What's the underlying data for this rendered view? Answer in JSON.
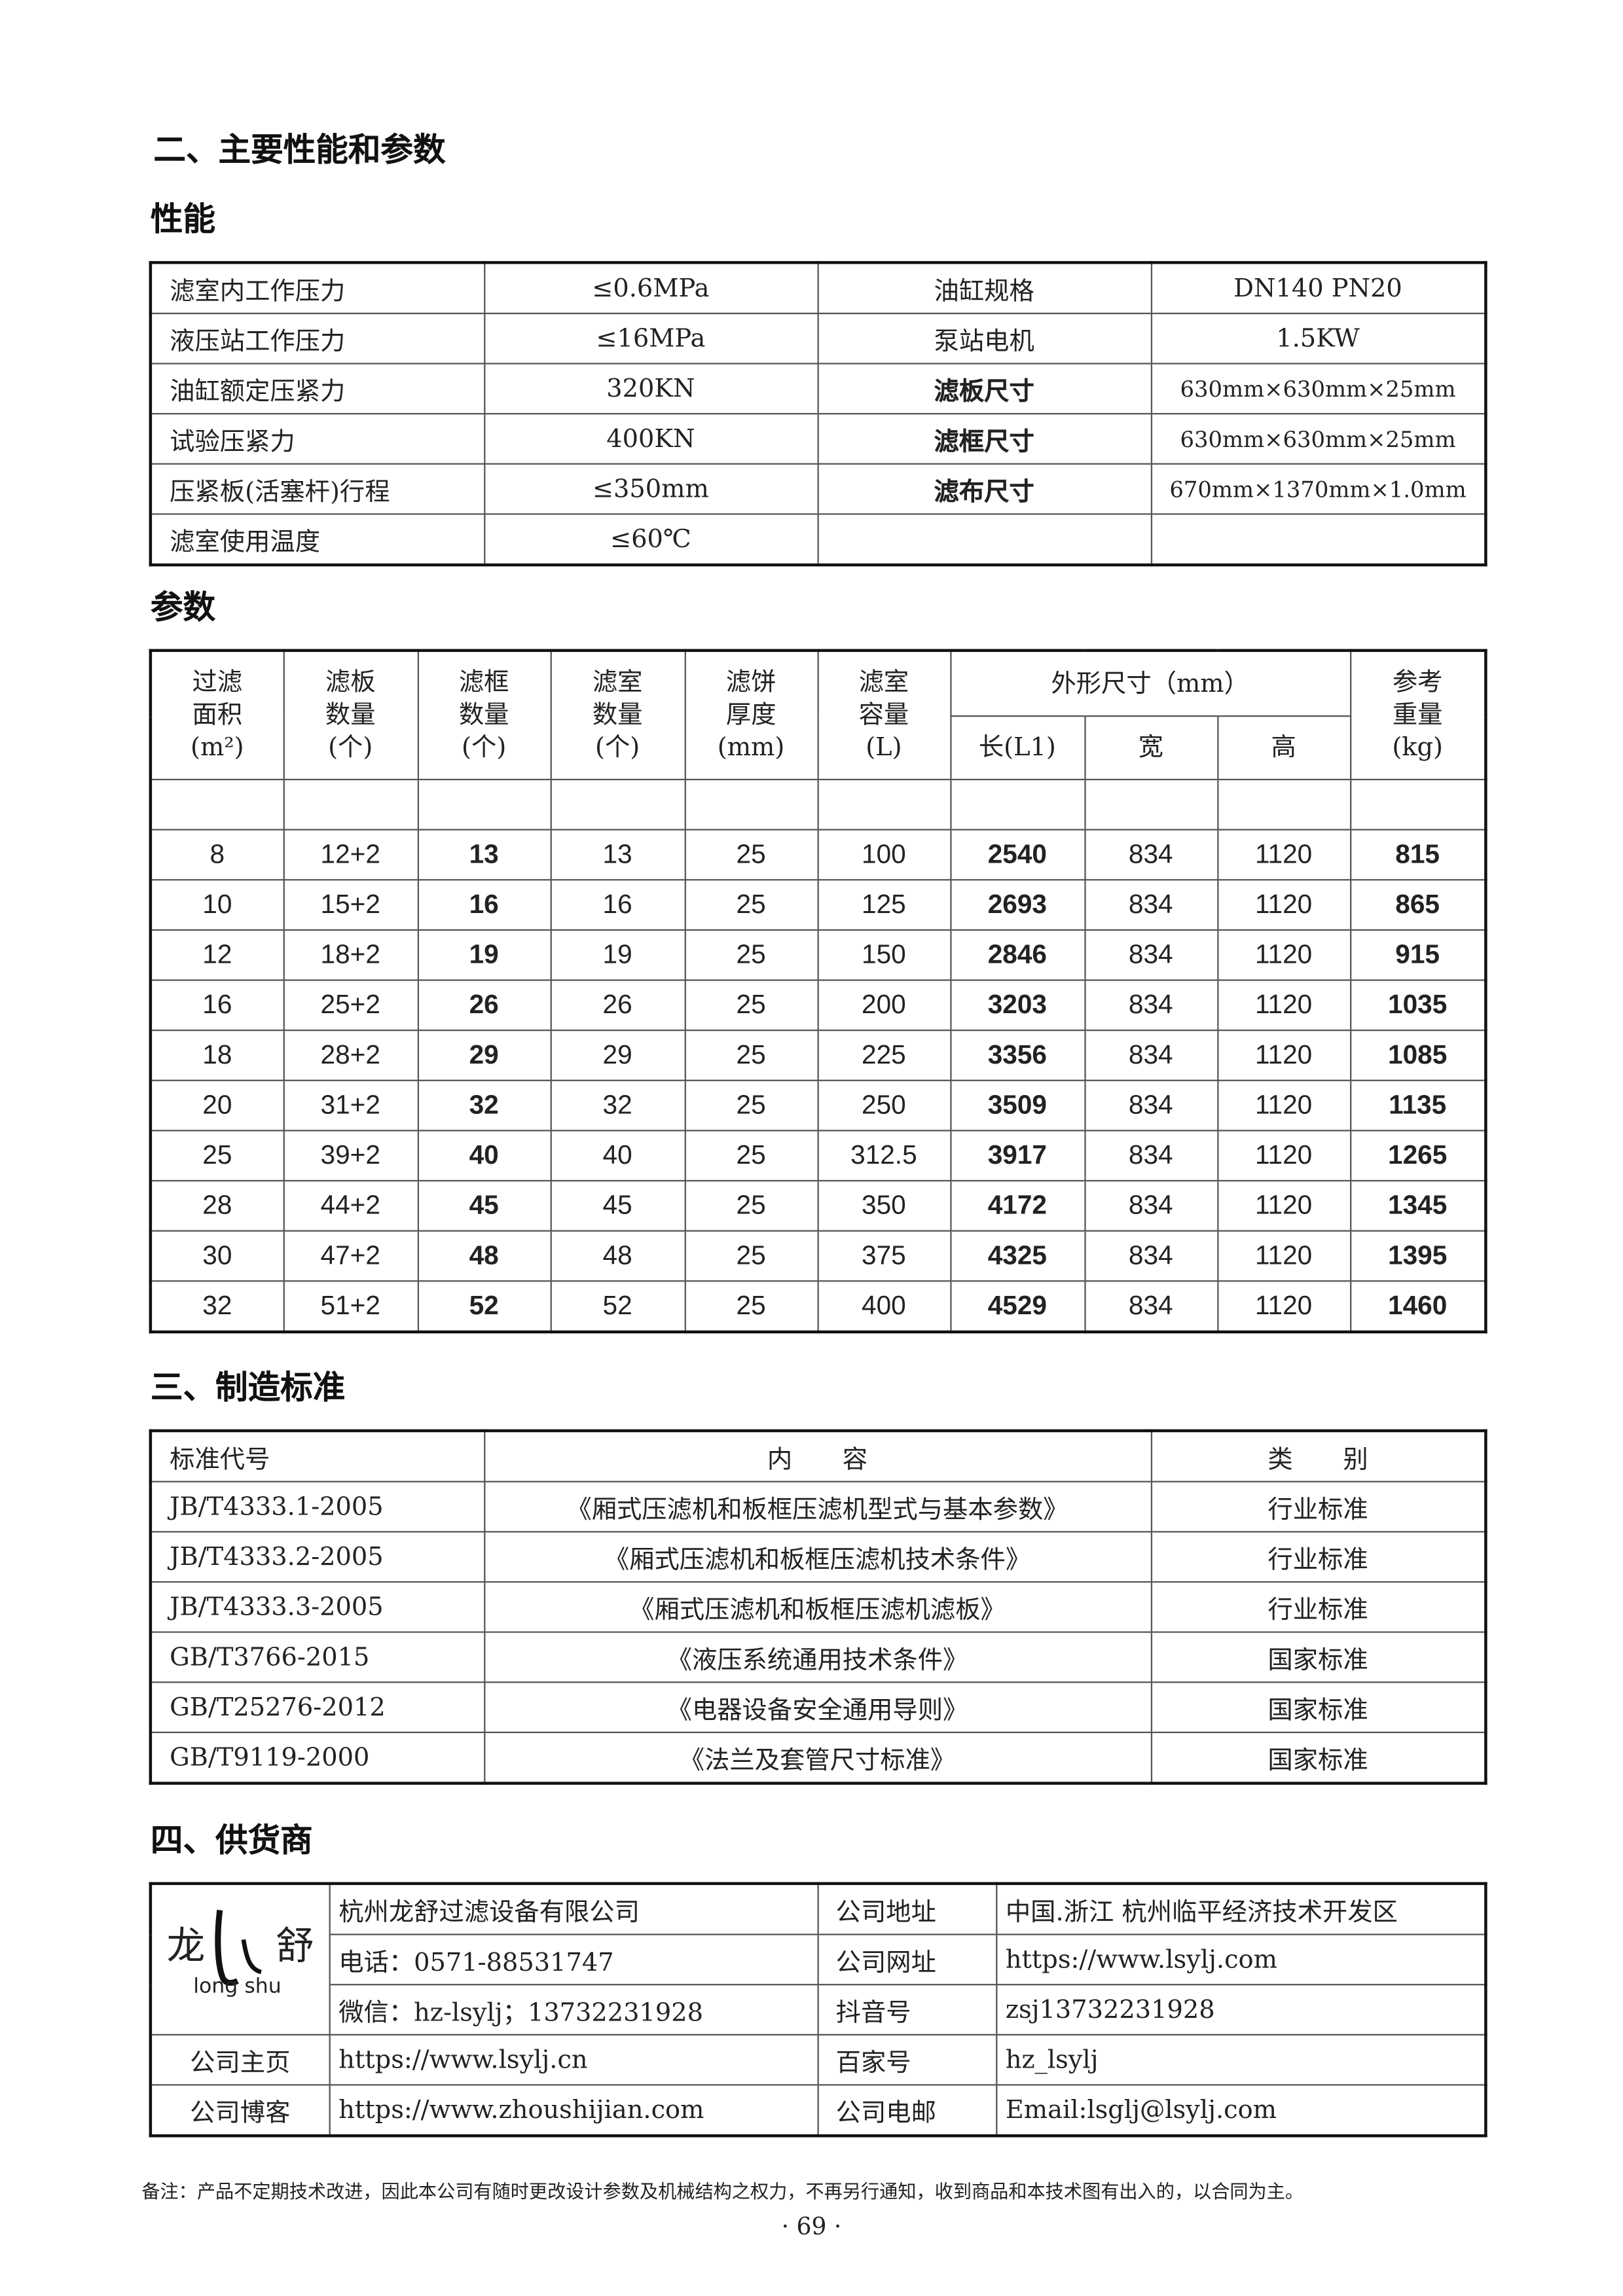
{
  "headings": {
    "s2": "二、主要性能和参数",
    "perf": "性能",
    "params": "参数",
    "s3": "三、制造标准",
    "s4": "四、供货商"
  },
  "performance": [
    [
      "滤室内工作压力",
      "≤0.6MPa",
      "油缸规格",
      "DN140  PN20"
    ],
    [
      "液压站工作压力",
      "≤16MPa",
      "泵站电机",
      "1.5KW"
    ],
    [
      "油缸额定压紧力",
      "320KN",
      "滤板尺寸",
      "630mm×630mm×25mm"
    ],
    [
      "试验压紧力",
      "400KN",
      "滤框尺寸",
      "630mm×630mm×25mm"
    ],
    [
      "压紧板(活塞杆)行程",
      "≤350mm",
      "滤布尺寸",
      "670mm×1370mm×1.0mm"
    ],
    [
      "滤室使用温度",
      "≤60℃",
      "",
      ""
    ]
  ],
  "params": {
    "headers": [
      "过滤\n面积\n(m²)",
      "滤板\n数量\n(个)",
      "滤框\n数量\n(个)",
      "滤室\n数量\n(个)",
      "滤饼\n厚度\n(mm)",
      "滤室\n容量\n(L)",
      "外形尺寸（mm）",
      "参考\n重量\n(kg)"
    ],
    "dim_sub": [
      "长(L1)",
      "宽",
      "高"
    ],
    "rows": [
      [
        "8",
        "12+2",
        "13",
        "13",
        "25",
        "100",
        "2540",
        "834",
        "1120",
        "815"
      ],
      [
        "10",
        "15+2",
        "16",
        "16",
        "25",
        "125",
        "2693",
        "834",
        "1120",
        "865"
      ],
      [
        "12",
        "18+2",
        "19",
        "19",
        "25",
        "150",
        "2846",
        "834",
        "1120",
        "915"
      ],
      [
        "16",
        "25+2",
        "26",
        "26",
        "25",
        "200",
        "3203",
        "834",
        "1120",
        "1035"
      ],
      [
        "18",
        "28+2",
        "29",
        "29",
        "25",
        "225",
        "3356",
        "834",
        "1120",
        "1085"
      ],
      [
        "20",
        "31+2",
        "32",
        "32",
        "25",
        "250",
        "3509",
        "834",
        "1120",
        "1135"
      ],
      [
        "25",
        "39+2",
        "40",
        "40",
        "25",
        "312.5",
        "3917",
        "834",
        "1120",
        "1265"
      ],
      [
        "28",
        "44+2",
        "45",
        "45",
        "25",
        "350",
        "4172",
        "834",
        "1120",
        "1345"
      ],
      [
        "30",
        "47+2",
        "48",
        "48",
        "25",
        "375",
        "4325",
        "834",
        "1120",
        "1395"
      ],
      [
        "32",
        "51+2",
        "52",
        "52",
        "25",
        "400",
        "4529",
        "834",
        "1120",
        "1460"
      ]
    ]
  },
  "standards": {
    "headers": [
      "标准代号",
      "内　　容",
      "类　　别"
    ],
    "rows": [
      [
        "JB/T4333.1-2005",
        "《厢式压滤机和板框压滤机型式与基本参数》",
        "行业标准"
      ],
      [
        "JB/T4333.2-2005",
        "《厢式压滤机和板框压滤机技术条件》",
        "行业标准"
      ],
      [
        "JB/T4333.3-2005",
        "《厢式压滤机和板框压滤机滤板》",
        "行业标准"
      ],
      [
        "GB/T3766-2015",
        "《液压系统通用技术条件》",
        "国家标准"
      ],
      [
        "GB/T25276-2012",
        "《电器设备安全通用导则》",
        "国家标准"
      ],
      [
        "GB/T9119-2000",
        "《法兰及套管尺寸标准》",
        "国家标准"
      ]
    ]
  },
  "supplier": {
    "logo": {
      "left": "龙",
      "right": "舒",
      "latin": "long shu"
    },
    "rows": [
      [
        "",
        "杭州龙舒过滤设备有限公司",
        "公司地址",
        "中国.浙江 杭州临平经济技术开发区"
      ],
      [
        "",
        "电话：0571-88531747",
        "公司网址",
        "https://www.lsylj.com"
      ],
      [
        "",
        "微信：hz-lsylj；13732231928",
        "抖音号",
        "zsj13732231928"
      ],
      [
        "公司主页",
        "https://www.lsylj.cn",
        "百家号",
        "hz_lsylj"
      ],
      [
        "公司博客",
        "https://www.zhoushijian.com",
        "公司电邮",
        "Email:lsglj@lsylj.com"
      ]
    ]
  },
  "footer": {
    "note": "备注：产品不定期技术改进，因此本公司有随时更改设计参数及机械结构之权力，不再另行通知，收到商品和本技术图有出入的，以合同为主。",
    "page": "· 69 ·"
  }
}
